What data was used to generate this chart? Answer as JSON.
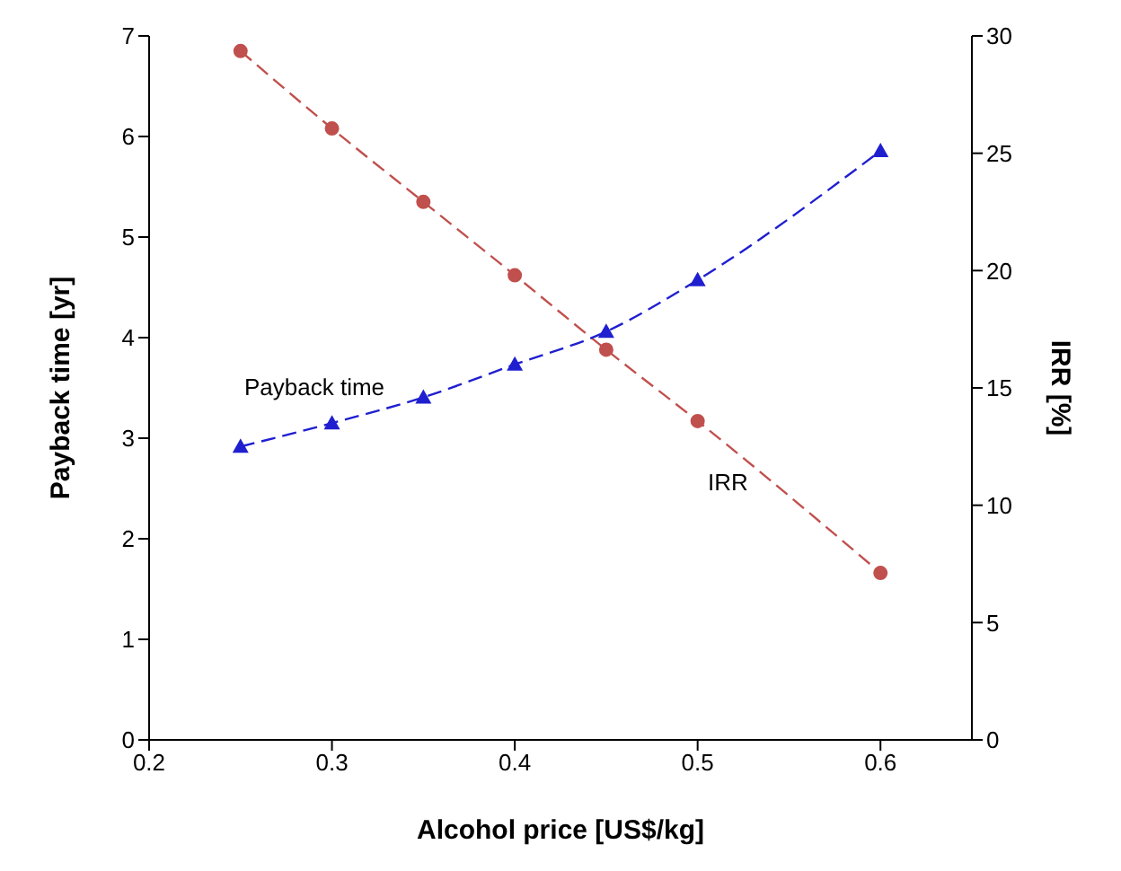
{
  "chart_data": {
    "type": "line",
    "xlabel": "Alcohol price [US$/kg]",
    "ylabel": "Payback time [yr]",
    "y2label": "IRR [%]",
    "xlim": [
      0.2,
      0.65
    ],
    "xticks": [
      0.2,
      0.3,
      0.4,
      0.5,
      0.6
    ],
    "ylim": [
      0,
      7
    ],
    "yticks": [
      0,
      1,
      2,
      3,
      4,
      5,
      6,
      7
    ],
    "y2lim": [
      0,
      30
    ],
    "y2ticks": [
      0,
      5,
      10,
      15,
      20,
      25,
      30
    ],
    "line_style": "dashed",
    "grid": false,
    "series": [
      {
        "color": "#c0504d",
        "marker": "circle",
        "axis": "y",
        "x": [
          0.25,
          0.3,
          0.35,
          0.4,
          0.45,
          0.5,
          0.6
        ],
        "values": [
          6.85,
          6.08,
          5.35,
          4.62,
          3.88,
          3.17,
          1.66
        ]
      },
      {
        "color": "#1f1fd0",
        "marker": "triangle",
        "axis": "y2",
        "x": [
          0.25,
          0.3,
          0.35,
          0.4,
          0.45,
          0.5,
          0.6
        ],
        "values": [
          12.5,
          13.5,
          14.6,
          16.0,
          17.4,
          19.6,
          25.1
        ]
      }
    ],
    "annotations": [
      "Payback time",
      "IRR"
    ]
  }
}
